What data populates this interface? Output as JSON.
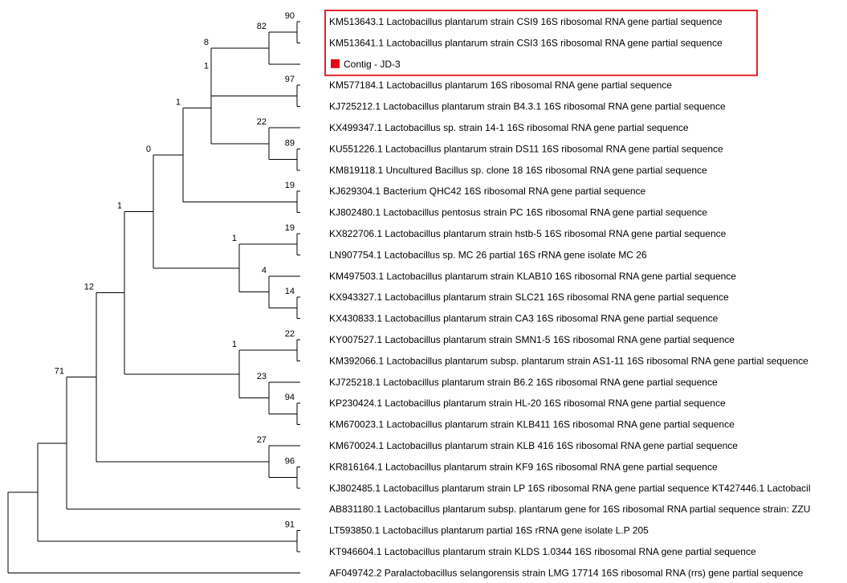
{
  "tree": {
    "highlight_color": "#e3242b",
    "marker_color": "#e30613",
    "line_color": "#000000",
    "taxa": [
      "KM513643.1 Lactobacillus plantarum strain CSI9 16S ribosomal RNA gene partial sequence",
      "KM513641.1 Lactobacillus plantarum strain CSI3 16S ribosomal RNA gene partial sequence",
      "Contig - JD-3",
      "KM577184.1 Lactobacillus plantarum 16S ribosomal RNA gene partial sequence",
      "KJ725212.1 Lactobacillus plantarum strain B4.3.1 16S ribosomal RNA gene partial sequence",
      "KX499347.1 Lactobacillus sp. strain 14-1 16S ribosomal RNA gene partial sequence",
      "KU551226.1 Lactobacillus plantarum strain DS11 16S ribosomal RNA gene partial sequence",
      "KM819118.1 Uncultured Bacillus sp. clone 18 16S ribosomal RNA gene partial sequence",
      "KJ629304.1 Bacterium QHC42 16S ribosomal RNA gene partial sequence",
      "KJ802480.1 Lactobacillus pentosus strain PC 16S ribosomal RNA gene partial sequence",
      "KX822706.1 Lactobacillus plantarum strain hstb-5 16S ribosomal RNA gene partial sequence",
      "LN907754.1 Lactobacillus sp. MC 26 partial 16S rRNA gene isolate MC 26",
      "KM497503.1 Lactobacillus plantarum strain KLAB10 16S ribosomal RNA gene partial sequence",
      "KX943327.1 Lactobacillus plantarum strain SLC21 16S ribosomal RNA gene partial sequence",
      "KX430833.1 Lactobacillus plantarum strain CA3 16S ribosomal RNA gene partial sequence",
      "KY007527.1 Lactobacillus plantarum strain SMN1-5 16S ribosomal RNA gene partial sequence",
      "KM392066.1 Lactobacillus plantarum subsp. plantarum strain AS1-11 16S ribosomal RNA gene partial sequence",
      "KJ725218.1 Lactobacillus plantarum strain B6.2 16S ribosomal RNA gene partial sequence",
      "KP230424.1 Lactobacillus plantarum strain HL-20 16S ribosomal RNA gene partial sequence",
      "KM670023.1 Lactobacillus plantarum strain KLB411 16S ribosomal RNA gene partial sequence",
      "KM670024.1 Lactobacillus plantarum strain KLB 416 16S ribosomal RNA gene partial sequence",
      "KR816164.1 Lactobacillus plantarum strain KF9 16S ribosomal RNA gene partial sequence",
      "KJ802485.1 Lactobacillus plantarum strain LP 16S ribosomal RNA gene partial sequence KT427446.1 Lactobacil",
      "AB831180.1 Lactobacillus plantarum subsp. plantarum gene for 16S ribosomal RNA partial sequence strain: ZZU",
      "LT593850.1 Lactobacillus plantarum partial 16S rRNA gene isolate L.P 205",
      "KT946604.1 Lactobacillus plantarum strain KLDS 1.0344 16S ribosomal RNA gene partial sequence",
      "AF049742.2 Paralactobacillus selangorensis strain LMG 17714 16S ribosomal RNA (rrs) gene partial sequence"
    ],
    "highlighted_taxa": [
      0,
      1,
      2
    ],
    "marked_taxa": [
      2
    ],
    "bootstrap_values": [
      "90",
      "82",
      "8",
      "97",
      "1",
      "22",
      "89",
      "1",
      "19",
      "0",
      "19",
      "1",
      "4",
      "14",
      "1",
      "22",
      "1",
      "23",
      "94",
      "12",
      "27",
      "96",
      "71",
      "91"
    ]
  }
}
